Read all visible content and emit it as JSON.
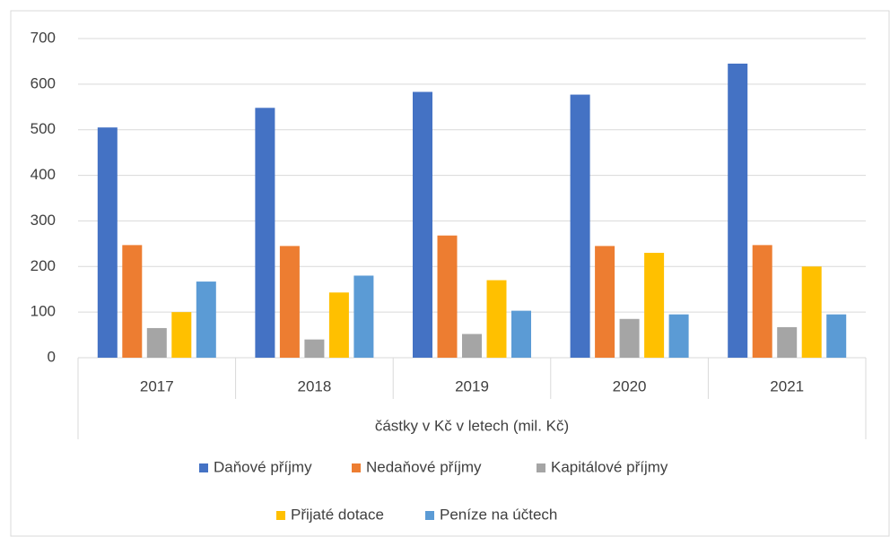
{
  "chart_data": {
    "type": "bar",
    "x_label": "částky v Kč v letech (mil. Kč)",
    "categories": [
      "2017",
      "2018",
      "2019",
      "2020",
      "2021"
    ],
    "series": [
      {
        "name": "Daňové příjmy",
        "color": "#4472c4",
        "values": [
          505,
          548,
          583,
          577,
          645
        ]
      },
      {
        "name": "Nedaňové příjmy",
        "color": "#ed7d31",
        "values": [
          247,
          245,
          268,
          245,
          247
        ]
      },
      {
        "name": "Kapitálové příjmy",
        "color": "#a5a5a5",
        "values": [
          65,
          40,
          52,
          85,
          67
        ]
      },
      {
        "name": "Přijaté dotace",
        "color": "#ffc000",
        "values": [
          100,
          143,
          170,
          230,
          200
        ]
      },
      {
        "name": "Peníze na účtech",
        "color": "#5b9bd5",
        "values": [
          167,
          180,
          103,
          95,
          95
        ]
      }
    ],
    "ylim": [
      0,
      700
    ],
    "yticks": [
      0,
      100,
      200,
      300,
      400,
      500,
      600,
      700
    ],
    "grid": true,
    "legend": "bottom"
  }
}
